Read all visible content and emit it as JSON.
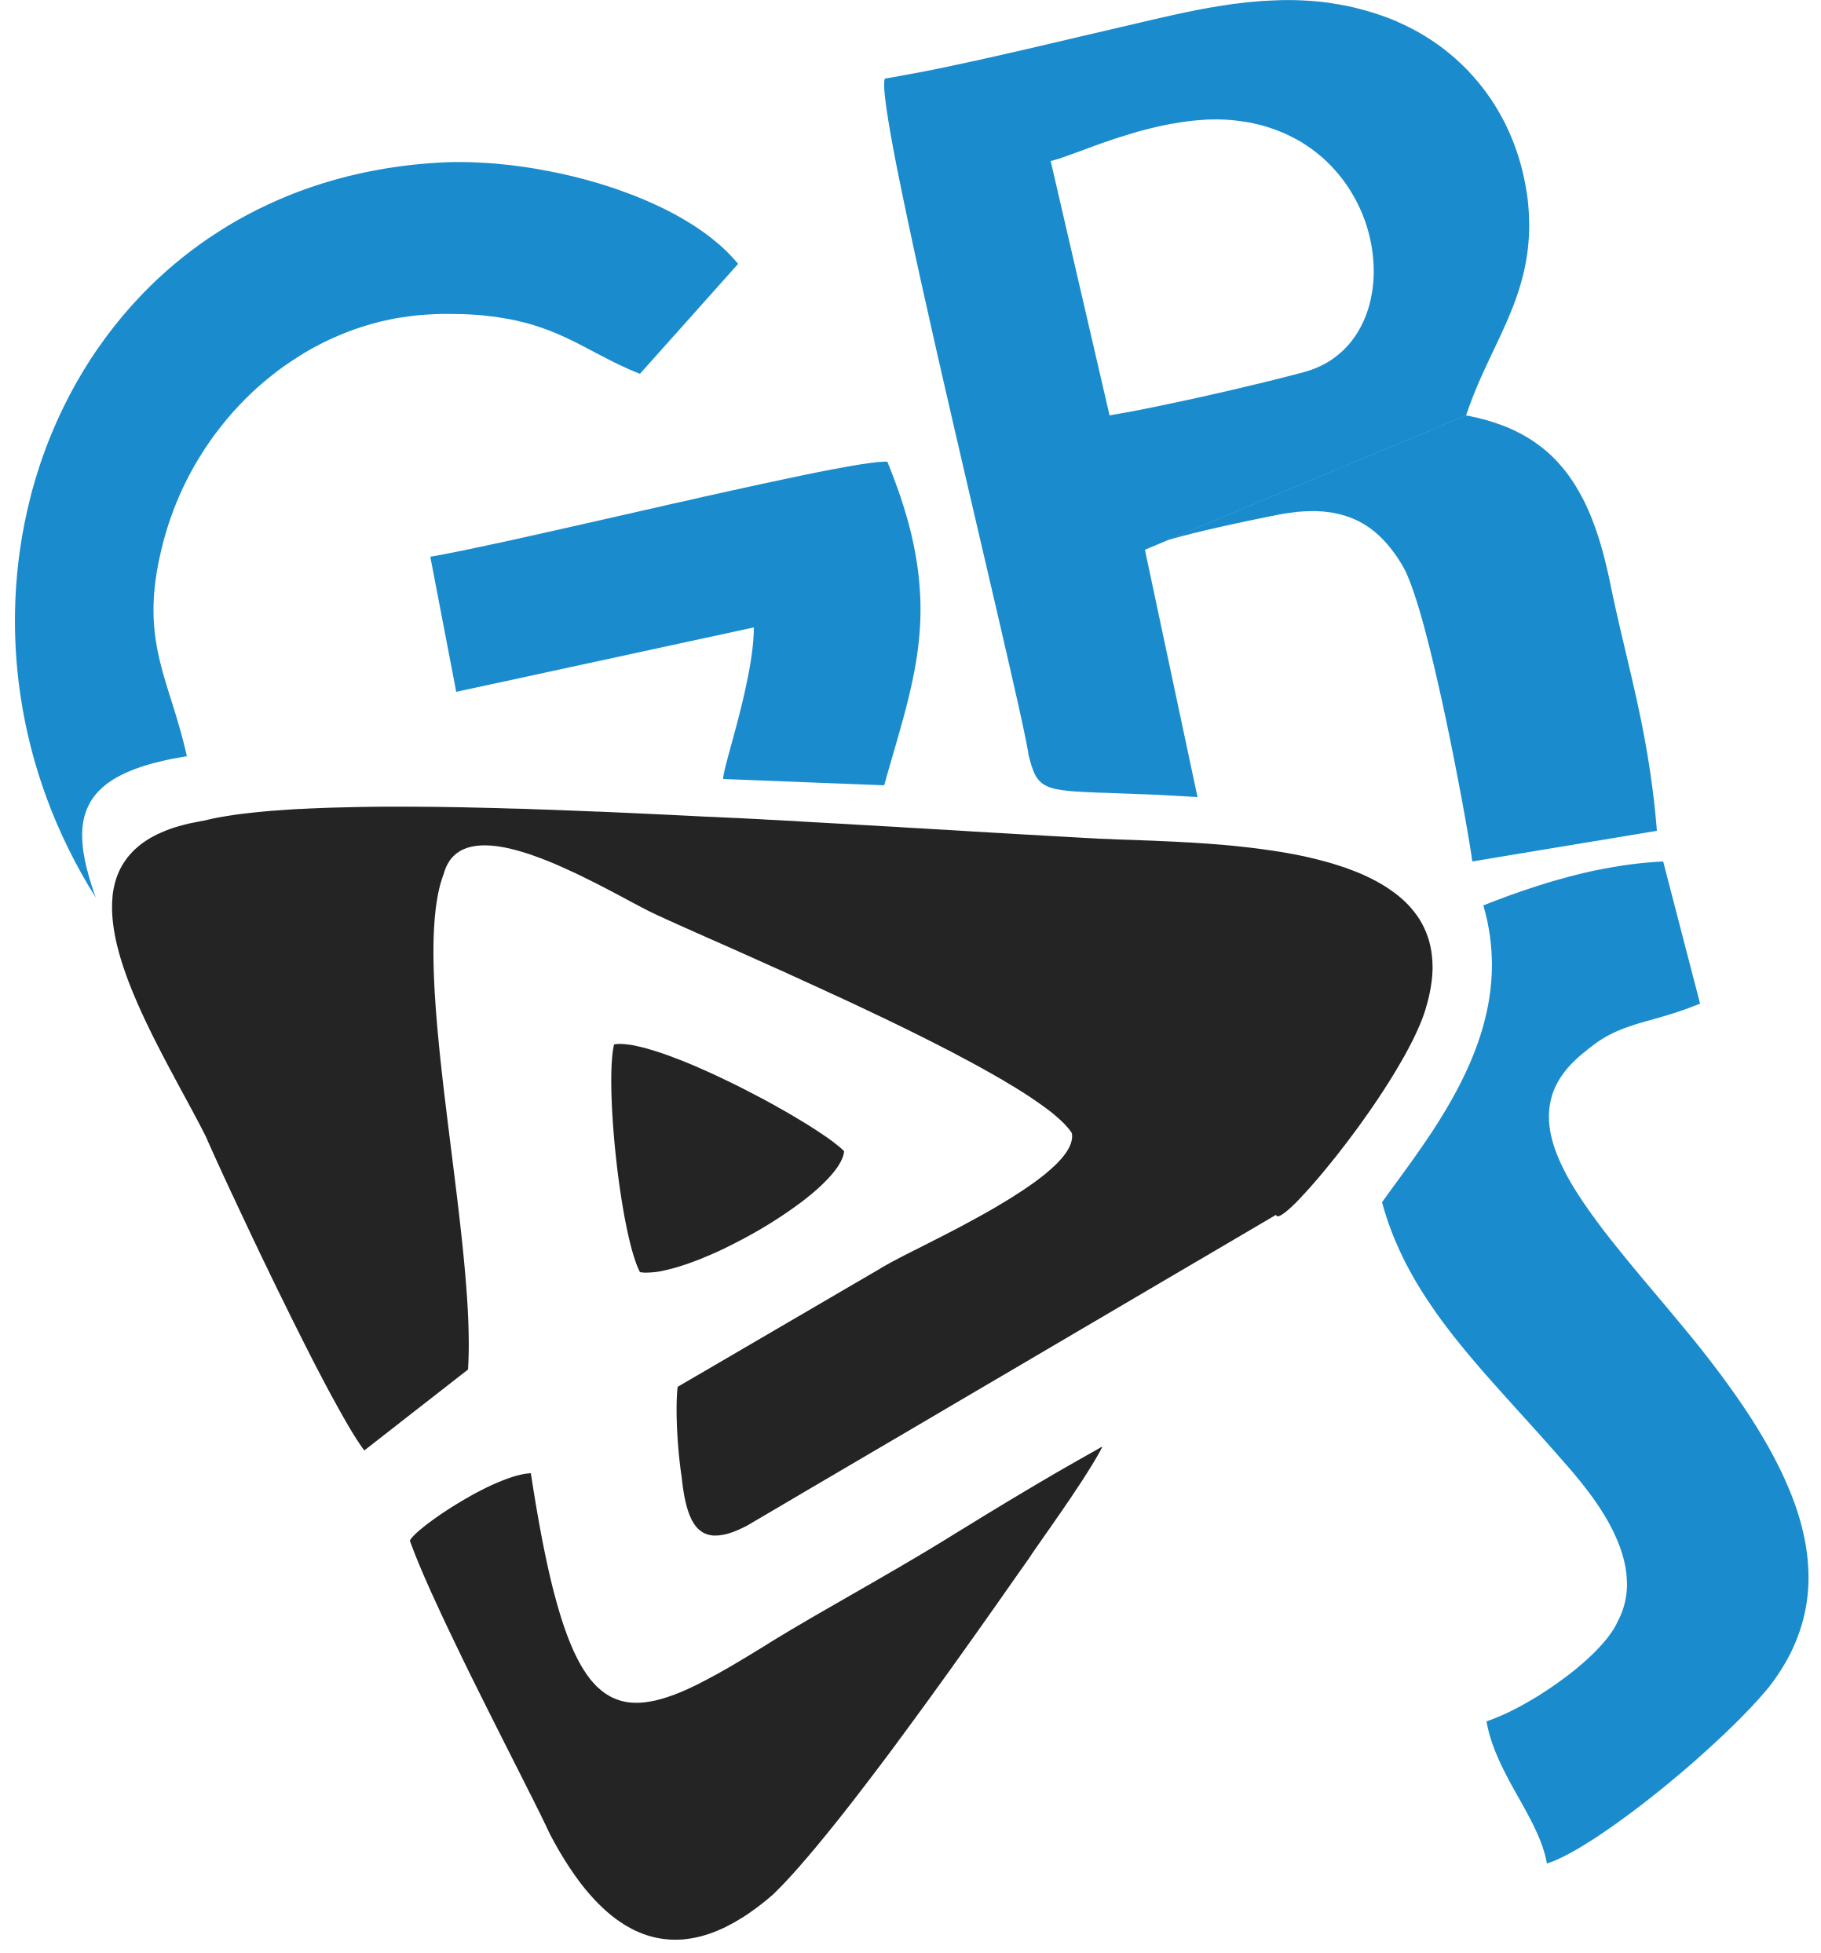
{
  "logo": {
    "name": "GRS play logo",
    "glyphs": [
      "G",
      "R",
      "S"
    ],
    "colors": {
      "brand_blue": "#1a8ccd",
      "play_dark": "#252425",
      "background": "#ffffff"
    }
  }
}
